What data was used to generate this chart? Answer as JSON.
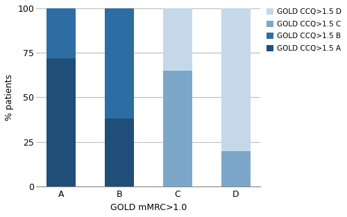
{
  "categories": [
    "A",
    "B",
    "C",
    "D"
  ],
  "series": [
    {
      "label": "GOLD CCQ>1.5 A",
      "values": [
        72,
        38,
        0,
        0
      ],
      "color": "#1f4e79"
    },
    {
      "label": "GOLD CCQ>1.5 B",
      "values": [
        28,
        62,
        0,
        0
      ],
      "color": "#2e6da4"
    },
    {
      "label": "GOLD CCQ>1.5 C",
      "values": [
        0,
        0,
        65,
        20
      ],
      "color": "#7ba7c9"
    },
    {
      "label": "GOLD CCQ>1.5 D",
      "values": [
        0,
        0,
        35,
        80
      ],
      "color": "#c5d8ea"
    }
  ],
  "xlabel": "GOLD mMRC>1.0",
  "ylabel": "% patients",
  "ylim": [
    0,
    100
  ],
  "yticks": [
    0,
    25,
    50,
    75,
    100
  ],
  "bar_width": 0.5,
  "background_color": "#ffffff",
  "grid_color": "#bbbbbb",
  "figsize": [
    5.0,
    3.13
  ],
  "dpi": 100
}
